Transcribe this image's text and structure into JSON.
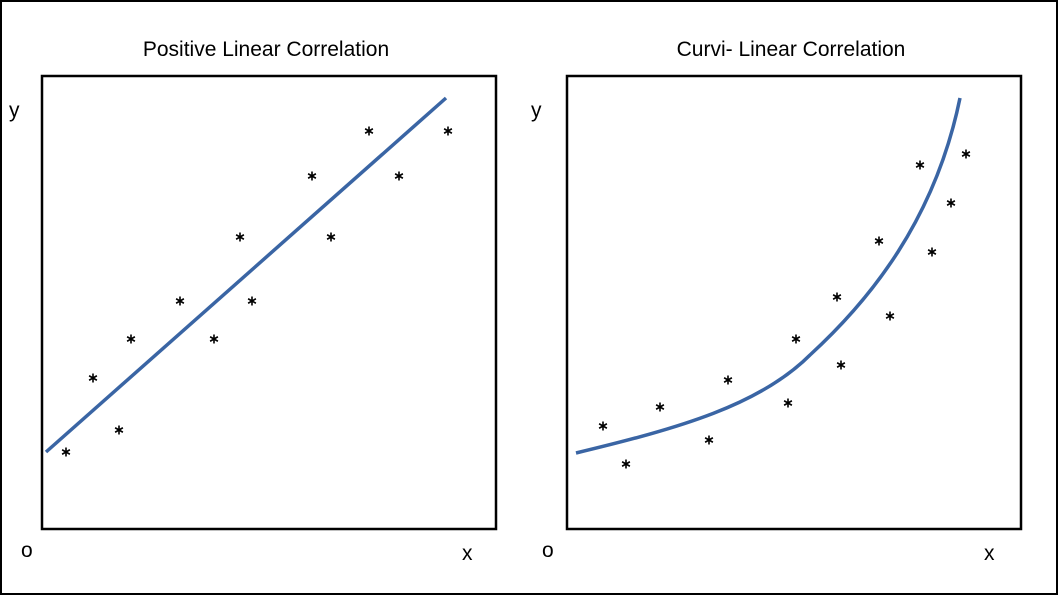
{
  "panels": [
    {
      "title": "Positive Linear Correlation",
      "y_label": "y",
      "origin_label": "o",
      "x_label": "x"
    },
    {
      "title": "Curvi- Linear Correlation",
      "y_label": "y",
      "origin_label": "o",
      "x_label": "x"
    }
  ]
}
